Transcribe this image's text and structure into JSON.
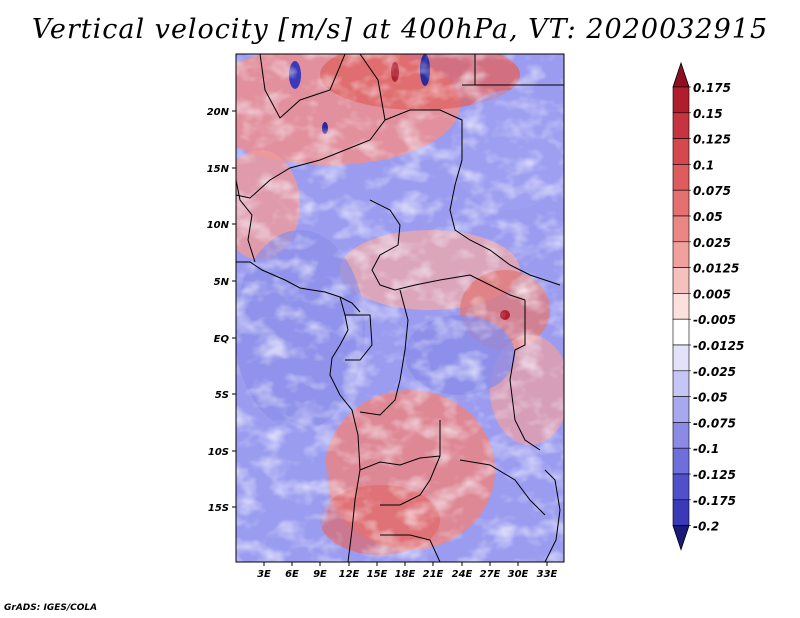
{
  "title": "Vertical velocity [m/s] at 400hPa, VT: 2020032915",
  "credit": "GrADS: IGES/COLA",
  "x_ticks": [
    "3E",
    "6E",
    "9E",
    "12E",
    "15E",
    "18E",
    "21E",
    "24E",
    "27E",
    "30E",
    "33E"
  ],
  "y_ticks": [
    "20N",
    "15N",
    "10N",
    "5N",
    "EQ",
    "5S",
    "10S",
    "15S"
  ],
  "colorbar": {
    "labels": [
      "0.175",
      "0.15",
      "0.125",
      "0.1",
      "0.075",
      "0.05",
      "0.025",
      "0.0125",
      "0.005",
      "-0.005",
      "-0.0125",
      "-0.025",
      "-0.05",
      "-0.075",
      "-0.1",
      "-0.125",
      "-0.175",
      "-0.2"
    ],
    "colors": [
      "#b01e2e",
      "#c63441",
      "#d5484e",
      "#de5b5e",
      "#e4706f",
      "#ea8683",
      "#f0a19e",
      "#f6c0bd",
      "#fbe0de",
      "#ffffff",
      "#e2e2fb",
      "#c6c6f6",
      "#a8a8ef",
      "#8b8be6",
      "#6f6fdb",
      "#5050cc",
      "#3a3ab8",
      "#2a2aa0"
    ],
    "top_arrow_color": "#8e1020",
    "bottom_arrow_color": "#1a1a7a"
  }
}
